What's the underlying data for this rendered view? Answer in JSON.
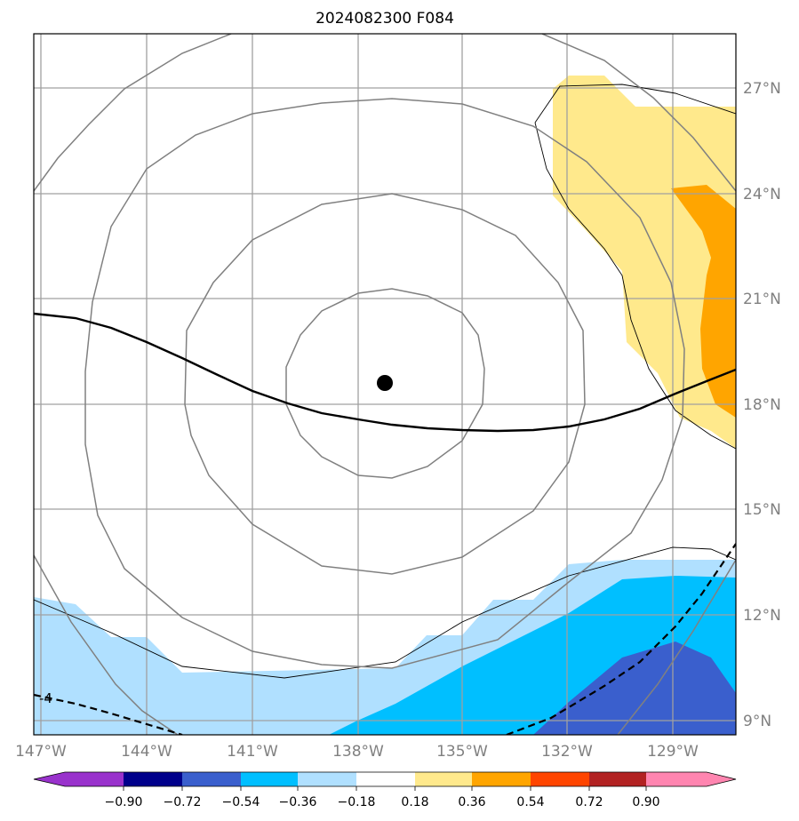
{
  "title": "2024082300 F084",
  "map": {
    "lon_labels": [
      "147°W",
      "144°W",
      "141°W",
      "138°W",
      "135°W",
      "132°W",
      "129°W"
    ],
    "lat_labels": [
      "27°N",
      "24°N",
      "21°N",
      "18°N",
      "15°N",
      "12°N",
      "9°N"
    ],
    "extent": {
      "lon": [
        -147.2,
        -127.3
      ],
      "lat": [
        8.5,
        28.5
      ]
    },
    "storm_center": {
      "lon": -137.7,
      "lat": 18.6
    },
    "contour_label": "-4"
  },
  "colorbar": {
    "ticks": [
      "−0.90",
      "−0.72",
      "−0.54",
      "−0.36",
      "−0.18",
      "0.18",
      "0.36",
      "0.54",
      "0.72",
      "0.90"
    ],
    "colors": [
      "#9932cc",
      "#00008b",
      "#3a5fcd",
      "#00bfff",
      "#b0e0ff",
      "#ffffff",
      "#ffe98c",
      "#ffa500",
      "#ff4500",
      "#b22222",
      "#ff85b0"
    ]
  }
}
